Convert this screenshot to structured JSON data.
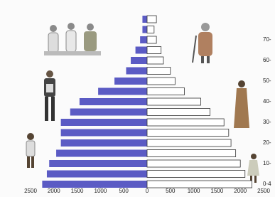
{
  "chart_data": {
    "type": "population-pyramid",
    "categories": [
      "0-4",
      null,
      "10-",
      null,
      "20-",
      null,
      "30-",
      null,
      "40-",
      null,
      "50-",
      null,
      "60-",
      null,
      "70-",
      null,
      null
    ],
    "series": [
      {
        "color": "#5b5bc4",
        "values": [
          2250,
          2150,
          2100,
          1950,
          1850,
          1850,
          1850,
          1650,
          1450,
          1050,
          700,
          450,
          350,
          250,
          150,
          100,
          100
        ]
      },
      {
        "color": "#ffffff",
        "values": [
          2250,
          2100,
          2000,
          1900,
          1800,
          1750,
          1650,
          1350,
          1150,
          800,
          600,
          500,
          350,
          300,
          200,
          150,
          200
        ]
      }
    ],
    "xlim": [
      0,
      2500
    ],
    "xticks": [
      0,
      500,
      1000,
      1500,
      2000,
      2500
    ]
  }
}
